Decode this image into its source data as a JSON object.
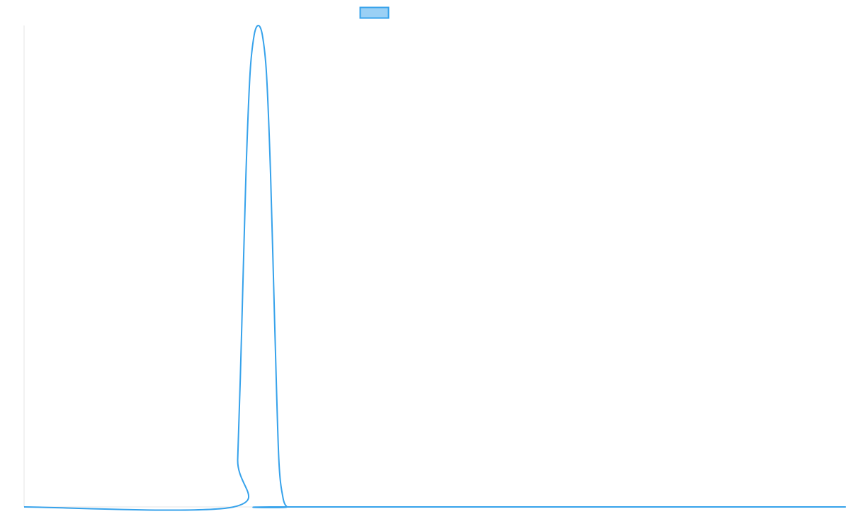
{
  "chart_data": {
    "type": "line",
    "title": "",
    "xlabel": "",
    "ylabel": "",
    "x": [
      0,
      0.255,
      0.26,
      0.265,
      0.27,
      0.275,
      0.28,
      0.285,
      0.29,
      0.295,
      0.3,
      0.305,
      0.31,
      0.315,
      0.32,
      0.325,
      1
    ],
    "series": [
      {
        "name": "",
        "values": [
          0,
          0,
          0.1,
          0.38,
          0.69,
          0.9,
          0.98,
          1.0,
          0.98,
          0.9,
          0.69,
          0.38,
          0.1,
          0.02,
          0,
          0,
          0
        ],
        "color": "#36a2eb",
        "fill": "#9ad0f5"
      }
    ],
    "xlim": [
      0,
      1
    ],
    "ylim": [
      0,
      1
    ],
    "grid": false,
    "legend": "top-center"
  }
}
